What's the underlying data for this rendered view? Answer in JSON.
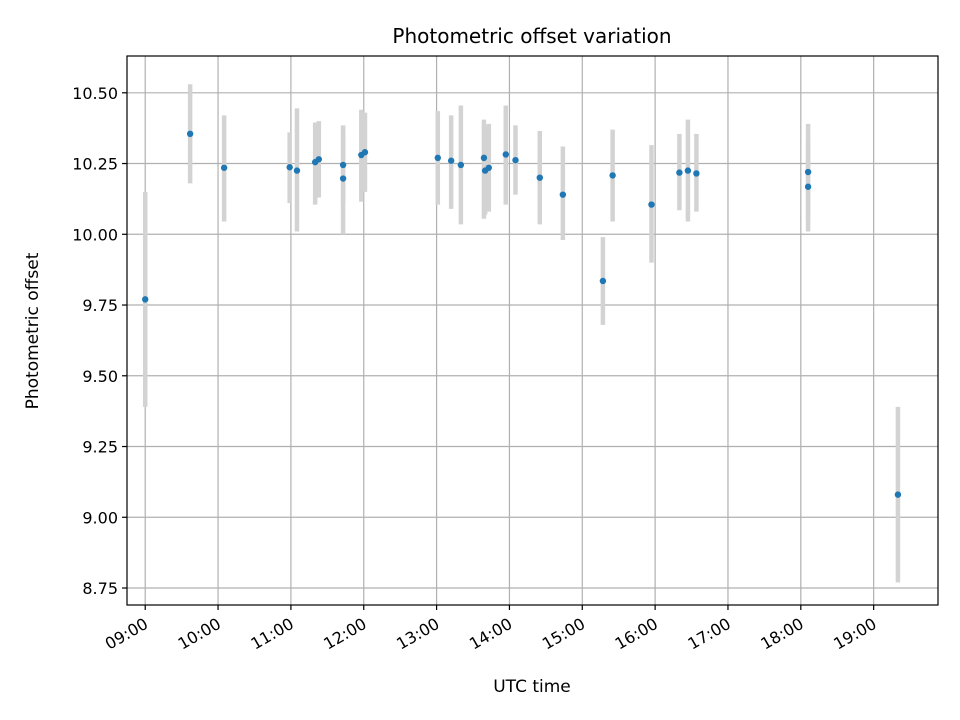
{
  "chart_data": {
    "type": "scatter",
    "title": "Photometric offset variation",
    "xlabel": "UTC time",
    "ylabel": "Photometric offset",
    "x_unit": "UTC hour of day",
    "xlim": [
      "08:45",
      "19:53"
    ],
    "ylim": [
      8.69,
      10.63
    ],
    "grid": true,
    "legend": "none",
    "marker_color": "#1f77b4",
    "errorbar_color": "#d3d3d3",
    "x_ticks": [
      "09:00",
      "10:00",
      "11:00",
      "12:00",
      "13:00",
      "14:00",
      "15:00",
      "16:00",
      "17:00",
      "18:00",
      "19:00"
    ],
    "y_ticks": [
      "8.75",
      "9.00",
      "9.25",
      "9.50",
      "9.75",
      "10.00",
      "10.25",
      "10.50"
    ],
    "points": [
      {
        "x": "09:00",
        "y": 9.77,
        "err_low": 9.39,
        "err_high": 10.15
      },
      {
        "x": "09:37",
        "y": 10.355,
        "err_low": 10.18,
        "err_high": 10.53
      },
      {
        "x": "10:05",
        "y": 10.235,
        "err_low": 10.045,
        "err_high": 10.42
      },
      {
        "x": "10:59",
        "y": 10.237,
        "err_low": 10.11,
        "err_high": 10.36
      },
      {
        "x": "11:05",
        "y": 10.225,
        "err_low": 10.01,
        "err_high": 10.445
      },
      {
        "x": "11:20",
        "y": 10.255,
        "err_low": 10.105,
        "err_high": 10.395
      },
      {
        "x": "11:23",
        "y": 10.265,
        "err_low": 10.13,
        "err_high": 10.4
      },
      {
        "x": "11:43",
        "y": 10.245,
        "err_low": 10.11,
        "err_high": 10.385
      },
      {
        "x": "11:43",
        "y": 10.197,
        "err_low": 10.0,
        "err_high": 10.37
      },
      {
        "x": "11:58",
        "y": 10.28,
        "err_low": 10.115,
        "err_high": 10.44
      },
      {
        "x": "12:01",
        "y": 10.29,
        "err_low": 10.15,
        "err_high": 10.43
      },
      {
        "x": "13:01",
        "y": 10.27,
        "err_low": 10.105,
        "err_high": 10.435
      },
      {
        "x": "13:12",
        "y": 10.26,
        "err_low": 10.09,
        "err_high": 10.42
      },
      {
        "x": "13:20",
        "y": 10.245,
        "err_low": 10.035,
        "err_high": 10.455
      },
      {
        "x": "13:39",
        "y": 10.27,
        "err_low": 10.055,
        "err_high": 10.405
      },
      {
        "x": "13:40",
        "y": 10.225,
        "err_low": 10.07,
        "err_high": 10.385
      },
      {
        "x": "13:43",
        "y": 10.235,
        "err_low": 10.08,
        "err_high": 10.39
      },
      {
        "x": "13:57",
        "y": 10.282,
        "err_low": 10.105,
        "err_high": 10.455
      },
      {
        "x": "14:05",
        "y": 10.262,
        "err_low": 10.14,
        "err_high": 10.385
      },
      {
        "x": "14:25",
        "y": 10.2,
        "err_low": 10.035,
        "err_high": 10.365
      },
      {
        "x": "14:44",
        "y": 10.14,
        "err_low": 9.98,
        "err_high": 10.31
      },
      {
        "x": "15:17",
        "y": 9.835,
        "err_low": 9.68,
        "err_high": 9.99
      },
      {
        "x": "15:25",
        "y": 10.208,
        "err_low": 10.045,
        "err_high": 10.37
      },
      {
        "x": "15:57",
        "y": 10.105,
        "err_low": 9.9,
        "err_high": 10.315
      },
      {
        "x": "16:20",
        "y": 10.218,
        "err_low": 10.085,
        "err_high": 10.355
      },
      {
        "x": "16:27",
        "y": 10.225,
        "err_low": 10.045,
        "err_high": 10.405
      },
      {
        "x": "16:34",
        "y": 10.215,
        "err_low": 10.08,
        "err_high": 10.355
      },
      {
        "x": "18:06",
        "y": 10.22,
        "err_low": 10.05,
        "err_high": 10.33
      },
      {
        "x": "18:06",
        "y": 10.168,
        "err_low": 10.01,
        "err_high": 10.39
      },
      {
        "x": "19:20",
        "y": 9.08,
        "err_low": 8.77,
        "err_high": 9.39
      }
    ]
  }
}
